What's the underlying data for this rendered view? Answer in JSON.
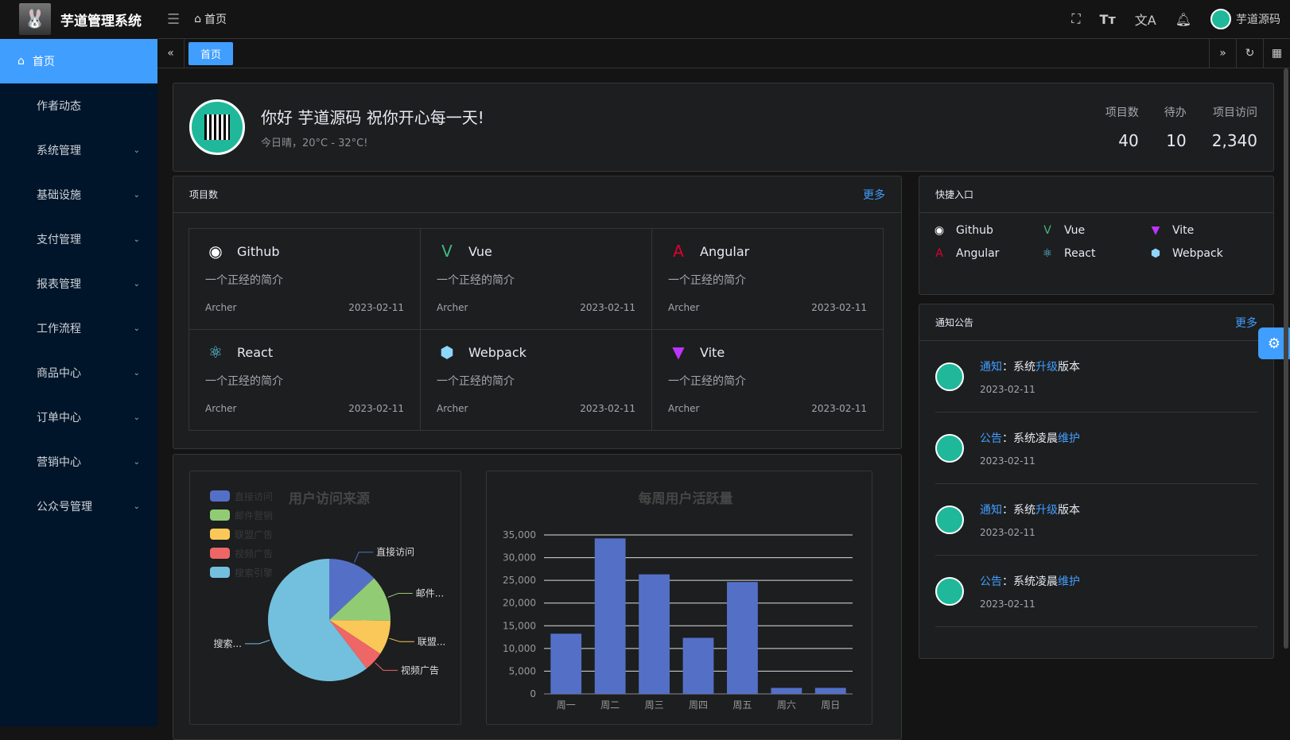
{
  "header": {
    "app_title": "芋道管理系统",
    "breadcrumb": "首页",
    "user_name": "芋道源码"
  },
  "sidebar": {
    "items": [
      {
        "label": "首页",
        "active": true
      },
      {
        "label": "作者动态"
      },
      {
        "label": "系统管理",
        "expandable": true
      },
      {
        "label": "基础设施",
        "expandable": true
      },
      {
        "label": "支付管理",
        "expandable": true
      },
      {
        "label": "报表管理",
        "expandable": true
      },
      {
        "label": "工作流程",
        "expandable": true
      },
      {
        "label": "商品中心",
        "expandable": true
      },
      {
        "label": "订单中心",
        "expandable": true
      },
      {
        "label": "营销中心",
        "expandable": true
      },
      {
        "label": "公众号管理",
        "expandable": true
      }
    ]
  },
  "tabs": [
    {
      "label": "首页",
      "active": true
    }
  ],
  "greeting": {
    "title": "你好 芋道源码 祝你开心每一天!",
    "subtitle": "今日晴，20°C - 32°C!",
    "stats": [
      {
        "label": "项目数",
        "value": "40"
      },
      {
        "label": "待办",
        "value": "10"
      },
      {
        "label": "项目访问",
        "value": "2,340"
      }
    ]
  },
  "projects": {
    "title": "项目数",
    "more": "更多",
    "items": [
      {
        "name": "Github",
        "icon": "github-icon",
        "desc": "一个正经的简介",
        "author": "Archer",
        "date": "2023-02-11"
      },
      {
        "name": "Vue",
        "icon": "vue-icon",
        "desc": "一个正经的简介",
        "author": "Archer",
        "date": "2023-02-11"
      },
      {
        "name": "Angular",
        "icon": "angular-icon",
        "desc": "一个正经的简介",
        "author": "Archer",
        "date": "2023-02-11"
      },
      {
        "name": "React",
        "icon": "react-icon",
        "desc": "一个正经的简介",
        "author": "Archer",
        "date": "2023-02-11"
      },
      {
        "name": "Webpack",
        "icon": "webpack-icon",
        "desc": "一个正经的简介",
        "author": "Archer",
        "date": "2023-02-11"
      },
      {
        "name": "Vite",
        "icon": "vite-icon",
        "desc": "一个正经的简介",
        "author": "Archer",
        "date": "2023-02-11"
      }
    ]
  },
  "quick": {
    "title": "快捷入口",
    "items": [
      {
        "name": "Github"
      },
      {
        "name": "Vue"
      },
      {
        "name": "Vite"
      },
      {
        "name": "Angular"
      },
      {
        "name": "React"
      },
      {
        "name": "Webpack"
      }
    ]
  },
  "notice": {
    "title": "通知公告",
    "more": "更多",
    "items": [
      {
        "type": "通知",
        "sep": "：",
        "pre": "系统",
        "key": "升级",
        "post": "版本",
        "date": "2023-02-11"
      },
      {
        "type": "公告",
        "sep": "：",
        "pre": "系统凌晨",
        "key": "维护",
        "post": "",
        "date": "2023-02-11"
      },
      {
        "type": "通知",
        "sep": "：",
        "pre": "系统",
        "key": "升级",
        "post": "版本",
        "date": "2023-02-11"
      },
      {
        "type": "公告",
        "sep": "：",
        "pre": "系统凌晨",
        "key": "维护",
        "post": "",
        "date": "2023-02-11"
      }
    ]
  },
  "chart_data": [
    {
      "type": "pie",
      "title": "用户访问来源",
      "legend_position": "top-left",
      "categories": [
        "直接访问",
        "邮件营销",
        "联盟广告",
        "视频广告",
        "搜索引擎"
      ],
      "values": [
        335,
        310,
        234,
        135,
        1548
      ],
      "colors": [
        "#5470c6",
        "#91cc75",
        "#fac858",
        "#ee6666",
        "#73c0de"
      ],
      "slice_labels": [
        "直接访问",
        "邮件...",
        "联盟...",
        "视频广告",
        "搜索..."
      ]
    },
    {
      "type": "bar",
      "title": "每周用户活跃量",
      "categories": [
        "周一",
        "周二",
        "周三",
        "周四",
        "周五",
        "周六",
        "周日"
      ],
      "values": [
        13253,
        34235,
        26321,
        12340,
        24643,
        1322,
        1324
      ],
      "ylim": [
        0,
        35000
      ],
      "yticks": [
        "0",
        "5,000",
        "10,000",
        "15,000",
        "20,000",
        "25,000",
        "30,000",
        "35,000"
      ],
      "grid": true,
      "color": "#5470c6"
    }
  ]
}
